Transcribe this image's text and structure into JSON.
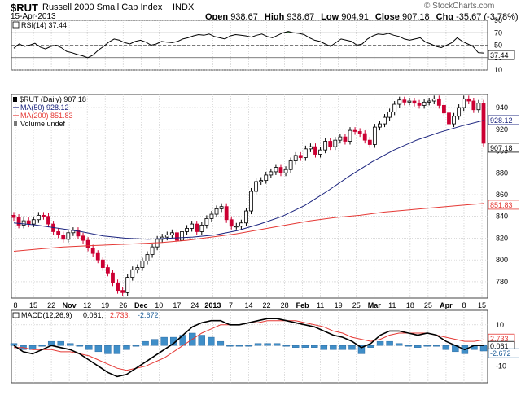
{
  "header": {
    "symbol": "$RUT",
    "name": "Russell 2000 Small Cap Index",
    "exchange": "INDX",
    "date": "15-Apr-2013",
    "open_label": "Open",
    "open": "938.67",
    "high_label": "High",
    "high": "938.67",
    "low_label": "Low",
    "low": "904.91",
    "close_label": "Close",
    "close": "907.18",
    "chg_label": "Chg",
    "chg": "-35.67 (-3.78%)",
    "watermark": "© StockCharts.com"
  },
  "colors": {
    "up": "#000000",
    "down": "#cc0033",
    "ma50": "#1a237e",
    "ma200": "#e53935",
    "rsi_fill": "#2e7d32",
    "macd_hist": "#3f8ec8",
    "grid": "#c8c8c8"
  },
  "chart_data": [
    {
      "type": "line",
      "title": "RSI(14) 37.44",
      "legend": "RSI(14) 37.44",
      "yticks": [
        10,
        30,
        50,
        70,
        90
      ],
      "ylim": [
        10,
        90
      ],
      "overbought": 70,
      "oversold": 30,
      "last_label": "37.44",
      "series": [
        {
          "name": "RSI(14)",
          "values": [
            45,
            52,
            48,
            50,
            53,
            47,
            44,
            48,
            50,
            46,
            40,
            38,
            35,
            33,
            30,
            34,
            42,
            48,
            55,
            60,
            58,
            54,
            52,
            56,
            58,
            55,
            50,
            52,
            56,
            55,
            54,
            56,
            60,
            62,
            65,
            67,
            66,
            68,
            64,
            62,
            60,
            65,
            67,
            66,
            65,
            63,
            66,
            68,
            64,
            62,
            66,
            70,
            72,
            70,
            69,
            67,
            62,
            58,
            56,
            52,
            48,
            54,
            60,
            58,
            56,
            50,
            52,
            60,
            65,
            68,
            67,
            69,
            66,
            64,
            60,
            58,
            60,
            62,
            55,
            52,
            48,
            46,
            50,
            54,
            62,
            56,
            52,
            48,
            38,
            37.44
          ]
        }
      ]
    },
    {
      "type": "candlestick",
      "legend": [
        "$RUT (Daily) 907.18",
        "MA(50) 928.12",
        "MA(200) 851.83",
        "Volume undef"
      ],
      "yticks": [
        780,
        800,
        820,
        840,
        860,
        880,
        900,
        920,
        940
      ],
      "ylim": [
        765,
        952
      ],
      "price_labels": [
        "928.12",
        "907.18",
        "851.83"
      ],
      "x_tick_labels": [
        "8",
        "15",
        "22",
        "Nov",
        "12",
        "19",
        "26",
        "Dec",
        "10",
        "17",
        "24",
        "2013",
        "7",
        "14",
        "22",
        "28",
        "Feb",
        "11",
        "19",
        "25",
        "Mar",
        "11",
        "18",
        "25",
        "Apr",
        "8",
        "15"
      ],
      "series": [
        {
          "name": "$RUT (Daily)",
          "closes": [
            839,
            832,
            836,
            833,
            837,
            841,
            840,
            833,
            826,
            823,
            819,
            825,
            827,
            822,
            818,
            811,
            806,
            800,
            793,
            788,
            779,
            772,
            770,
            784,
            791,
            793,
            799,
            805,
            812,
            819,
            821,
            823,
            825,
            818,
            826,
            829,
            833,
            826,
            832,
            838,
            842,
            847,
            849,
            837,
            831,
            831,
            834,
            845,
            863,
            872,
            873,
            878,
            881,
            885,
            880,
            883,
            891,
            896,
            894,
            902,
            904,
            897,
            901,
            909,
            904,
            910,
            913,
            909,
            919,
            918,
            916,
            910,
            906,
            922,
            925,
            931,
            936,
            943,
            947,
            945,
            946,
            944,
            942,
            945,
            946,
            948,
            942,
            935,
            925,
            932,
            940,
            948,
            946,
            938,
            944,
            907.18
          ]
        },
        {
          "name": "MA(50)",
          "values": [
            834,
            832,
            829,
            826,
            822,
            820,
            819,
            820,
            821,
            823,
            827,
            833,
            840,
            850,
            863,
            877,
            890,
            901,
            910,
            917,
            923,
            928.12
          ]
        },
        {
          "name": "MA(200)",
          "values": [
            808,
            810,
            812,
            813,
            814,
            815,
            816,
            818,
            821,
            824,
            828,
            832,
            836,
            839,
            841,
            844,
            846,
            848,
            850,
            851.83
          ]
        }
      ]
    },
    {
      "type": "line",
      "legend": [
        "MACD(12,26,9)",
        "0.061,",
        "2.733,",
        "-2.672"
      ],
      "yticks": [
        10,
        0,
        -10
      ],
      "ylim": [
        -18,
        17
      ],
      "value_labels": [
        "2.733",
        "0.061",
        "-2.672"
      ],
      "series": [
        {
          "name": "MACD",
          "values": [
            0,
            -3,
            -4,
            -2,
            0,
            -1,
            -2,
            -4,
            -7,
            -10,
            -13,
            -15,
            -14,
            -11,
            -8,
            -5,
            -2,
            1,
            5,
            9,
            11,
            12,
            12,
            10,
            10,
            11,
            12,
            13,
            13,
            12,
            11,
            10,
            9,
            7,
            5,
            4,
            2,
            -1,
            1,
            5,
            7,
            7,
            6,
            5,
            6,
            5,
            2,
            0,
            -2,
            0,
            0.061
          ]
        },
        {
          "name": "Signal",
          "values": [
            -1,
            -1,
            -2,
            -2,
            -2,
            -3,
            -3,
            -4,
            -5,
            -7,
            -9,
            -11,
            -12,
            -11,
            -10,
            -8,
            -6,
            -3,
            0,
            3,
            6,
            8,
            10,
            10,
            10,
            11,
            11,
            12,
            12,
            12,
            12,
            11,
            10,
            9,
            7,
            6,
            4,
            3,
            2,
            3,
            5,
            6,
            6,
            6,
            6,
            5,
            4,
            3,
            2,
            2,
            2.733
          ]
        },
        {
          "name": "Histogram",
          "values": [
            1,
            -2,
            -2,
            0,
            2,
            2,
            1,
            0,
            -2,
            -3,
            -4,
            -4,
            -2,
            0,
            2,
            3,
            4,
            4,
            5,
            6,
            5,
            4,
            2,
            0,
            0,
            0,
            1,
            1,
            1,
            0,
            -1,
            -1,
            -1,
            -2,
            -2,
            -2,
            -2,
            -4,
            -1,
            2,
            2,
            1,
            0,
            -1,
            0,
            0,
            -2,
            -3,
            -4,
            -2,
            -2.672
          ]
        }
      ]
    }
  ]
}
